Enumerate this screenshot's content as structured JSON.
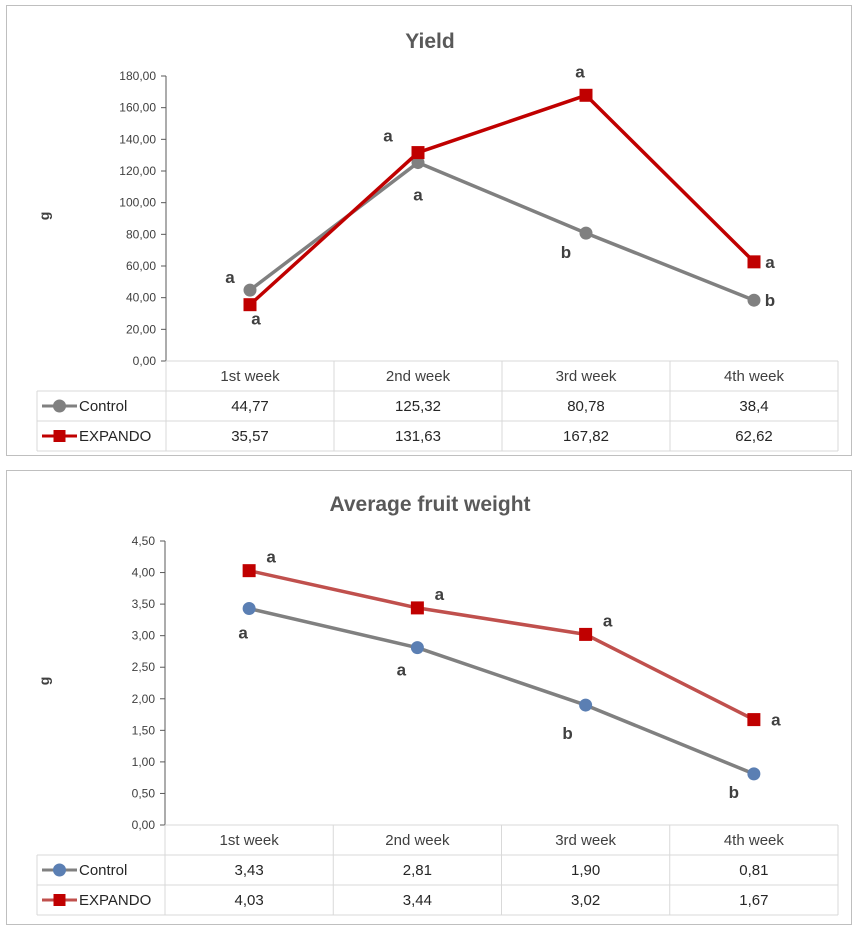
{
  "chart_data": [
    {
      "type": "line",
      "title": "Yield",
      "ylabel": "g",
      "xlabel": "",
      "ylim": [
        0,
        180
      ],
      "ytick_labels": [
        "0,00",
        "20,00",
        "40,00",
        "60,00",
        "80,00",
        "100,00",
        "120,00",
        "140,00",
        "160,00",
        "180,00"
      ],
      "categories": [
        "1st week",
        "2nd week",
        "3rd week",
        "4th week"
      ],
      "grid": false,
      "legend": "data-table-left",
      "series": [
        {
          "name": "Control",
          "values": [
            44.77,
            125.32,
            80.78,
            38.4
          ],
          "value_labels": [
            "44,77",
            "125,32",
            "80,78",
            "38,4"
          ],
          "letters": [
            "a",
            "a",
            "b",
            "b"
          ],
          "color": "#808080",
          "marker": "circle",
          "marker_fill": "#808080"
        },
        {
          "name": "EXPANDO",
          "values": [
            35.57,
            131.63,
            167.82,
            62.62
          ],
          "value_labels": [
            "35,57",
            "131,63",
            "167,82",
            "62,62"
          ],
          "letters": [
            "a",
            "a",
            "a",
            "a"
          ],
          "color": "#c00000",
          "marker": "square",
          "marker_fill": "#c00000"
        }
      ]
    },
    {
      "type": "line",
      "title": "Average fruit weight",
      "ylabel": "g",
      "xlabel": "",
      "ylim": [
        0,
        4.5
      ],
      "ytick_labels": [
        "0,00",
        "0,50",
        "1,00",
        "1,50",
        "2,00",
        "2,50",
        "3,00",
        "3,50",
        "4,00",
        "4,50"
      ],
      "categories": [
        "1st week",
        "2nd week",
        "3rd week",
        "4th week"
      ],
      "grid": false,
      "legend": "data-table-left",
      "series": [
        {
          "name": "Control",
          "values": [
            3.43,
            2.81,
            1.9,
            0.81
          ],
          "value_labels": [
            "3,43",
            "2,81",
            "1,90",
            "0,81"
          ],
          "letters": [
            "a",
            "a",
            "b",
            "b"
          ],
          "color": "#808080",
          "marker": "circle",
          "marker_fill": "#5b7fb3"
        },
        {
          "name": "EXPANDO",
          "values": [
            4.03,
            3.44,
            3.02,
            1.67
          ],
          "value_labels": [
            "4,03",
            "3,44",
            "3,02",
            "1,67"
          ],
          "letters": [
            "a",
            "a",
            "a",
            "a"
          ],
          "color": "#c0504d",
          "marker": "square",
          "marker_fill": "#c00000"
        }
      ]
    }
  ]
}
